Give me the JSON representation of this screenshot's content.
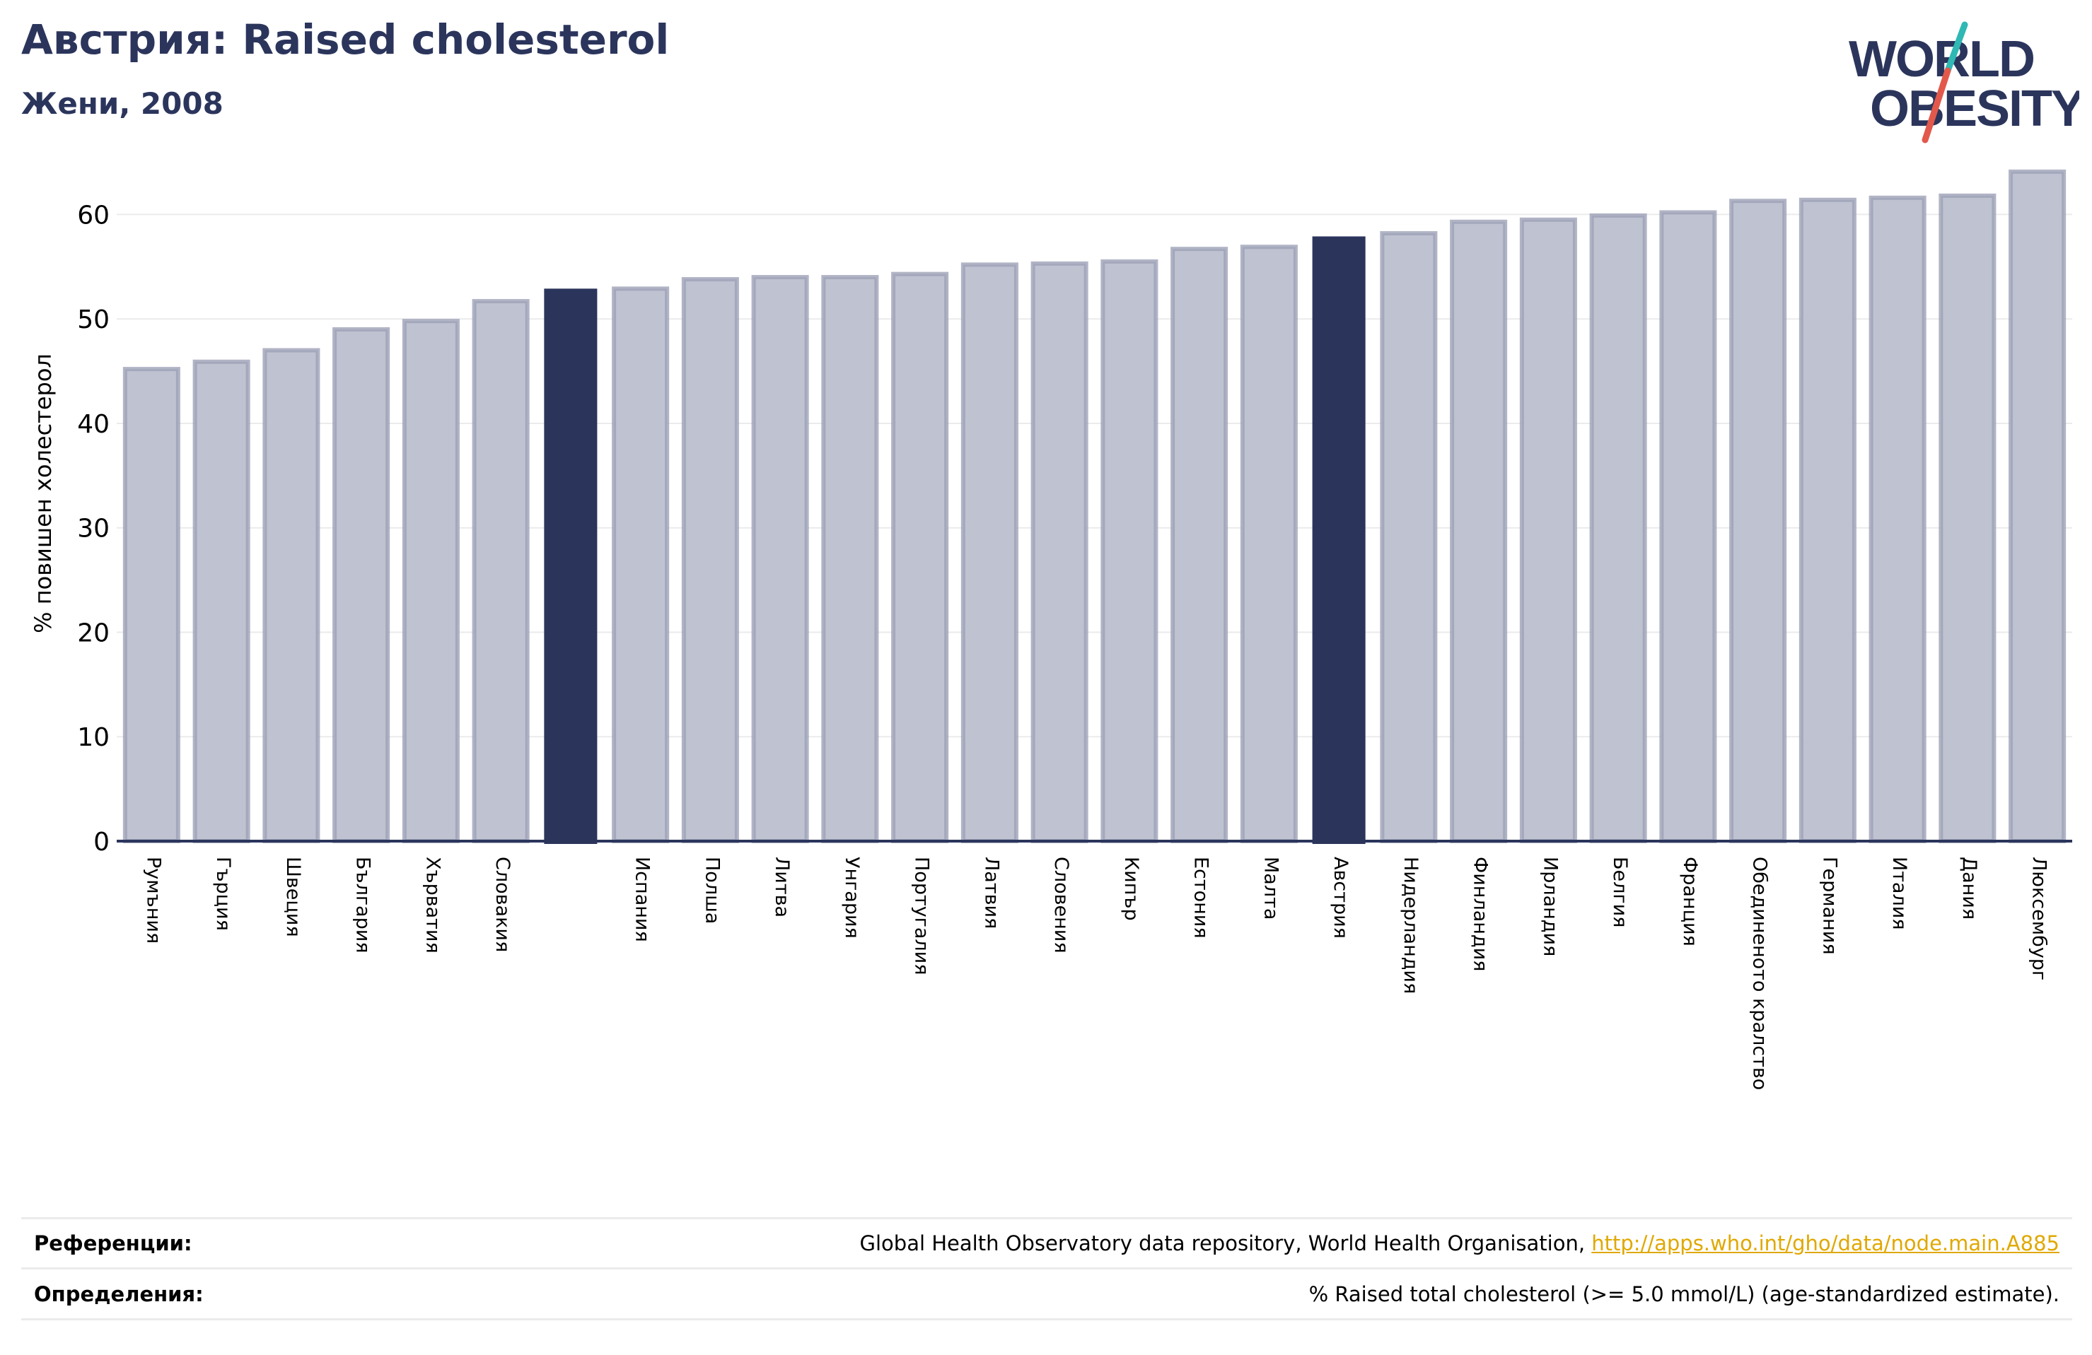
{
  "header": {
    "title": "Австрия: Raised cholesterol",
    "subtitle": "Жени, 2008"
  },
  "logo": {
    "line1": "WORLD",
    "line2": "OBESITY",
    "colors": {
      "text": "#2b355c",
      "slash_red": "#e2594c",
      "slash_teal": "#2fb8b4"
    }
  },
  "colors": {
    "bar_default": "#bfc2d0",
    "bar_default_stroke": "#9da1b6",
    "bar_highlight": "#2b355c",
    "grid": "#ebebeb",
    "axis": "#2b355c"
  },
  "chart_data": {
    "type": "bar",
    "ylabel": "% повишен холестерол",
    "ylim": [
      0,
      67
    ],
    "yticks": [
      0,
      10,
      20,
      30,
      40,
      50,
      60
    ],
    "grid": true,
    "categories": [
      "Румъния",
      "Гърция",
      "Швеция",
      "България",
      "Хърватия",
      "Словакия",
      "",
      "Испания",
      "Полша",
      "Литва",
      "Унгария",
      "Португалия",
      "Латвия",
      "Словения",
      "Кипър",
      "Естония",
      "Малта",
      "Австрия",
      "Нидерландия",
      "Финландия",
      "Ирландия",
      "Белгия",
      "Франция",
      "Обединеното кралство",
      "Германия",
      "Италия",
      "Дания",
      "Люксембург"
    ],
    "values": [
      45.2,
      45.9,
      47.0,
      49.0,
      49.8,
      51.7,
      52.9,
      52.9,
      53.8,
      54.0,
      54.0,
      54.3,
      55.2,
      55.3,
      55.5,
      56.7,
      56.9,
      57.9,
      58.2,
      59.3,
      59.5,
      59.9,
      60.2,
      61.3,
      61.4,
      61.6,
      61.8,
      64.1
    ],
    "highlight": [
      6,
      17
    ]
  },
  "footer": {
    "references_label": "Референции:",
    "references_text": "Global Health Observatory data repository, World Health Organisation, ",
    "references_link": "http://apps.who.int/gho/data/node.main.A885",
    "definitions_label": "Определения:",
    "definitions_text": "% Raised total cholesterol (>= 5.0 mmol/L) (age-standardized estimate)."
  }
}
